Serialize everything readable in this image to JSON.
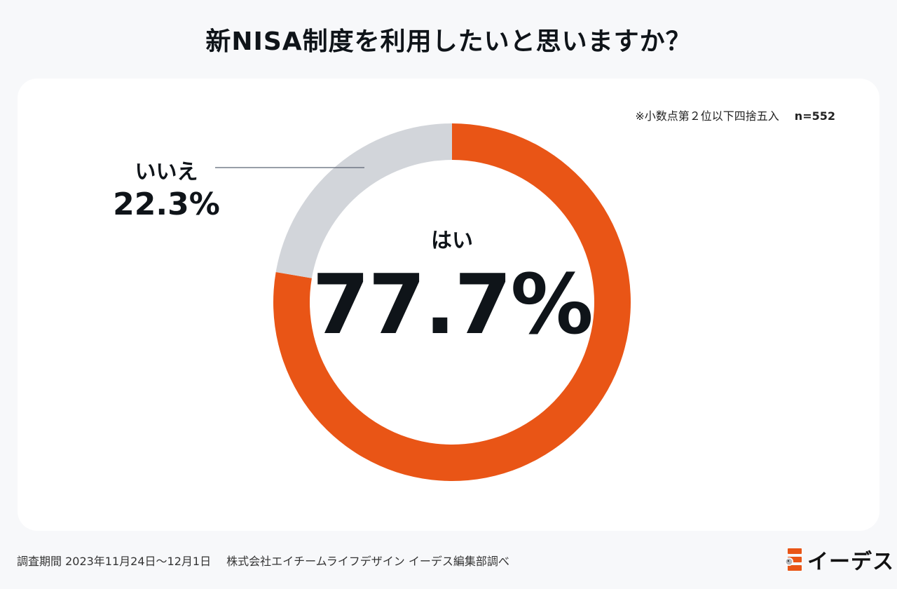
{
  "title": "新NISA制度を利用したいと思いますか？",
  "note": "※小数点第２位以下四捨五入",
  "sample_size": "n=552",
  "chart_data": {
    "type": "pie",
    "title": "新NISA制度を利用したいと思いますか？",
    "slices": [
      {
        "label": "はい",
        "value": 77.7,
        "display": "77.7%",
        "color": "#e95516"
      },
      {
        "label": "いいえ",
        "value": 22.3,
        "display": "22.3%",
        "color": "#d2d5da"
      }
    ]
  },
  "footer": {
    "period": "調査期間 2023年11月24日〜12月1日",
    "source": "株式会社エイチームライフデザイン イーデス編集部調べ"
  },
  "logo": {
    "text": "イーデス",
    "color": "#e95516"
  }
}
